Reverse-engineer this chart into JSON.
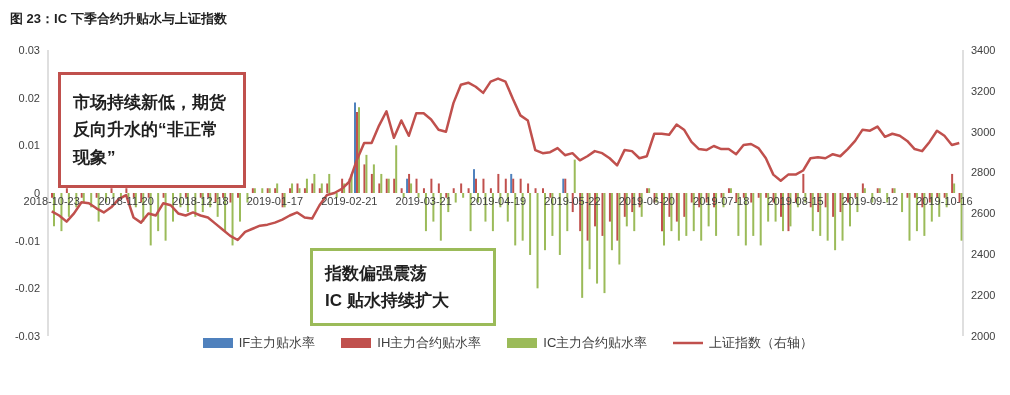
{
  "chart_data": {
    "type": "bar",
    "title": "图 23：IC 下季合约升贴水与上证指数",
    "categories": [
      "2018-10-23",
      null,
      null,
      null,
      null,
      null,
      null,
      null,
      null,
      null,
      "2018-11-20",
      null,
      null,
      null,
      null,
      null,
      null,
      null,
      null,
      null,
      "2018-12-18",
      null,
      null,
      null,
      null,
      null,
      null,
      null,
      null,
      null,
      "2019-01-17",
      null,
      null,
      null,
      null,
      null,
      null,
      null,
      null,
      null,
      "2019-02-21",
      null,
      null,
      null,
      null,
      null,
      null,
      null,
      null,
      null,
      "2019-03-21",
      null,
      null,
      null,
      null,
      null,
      null,
      null,
      null,
      null,
      "2019-04-19",
      null,
      null,
      null,
      null,
      null,
      null,
      null,
      null,
      null,
      "2019-05-22",
      null,
      null,
      null,
      null,
      null,
      null,
      null,
      null,
      null,
      "2019-06-20",
      null,
      null,
      null,
      null,
      null,
      null,
      null,
      null,
      null,
      "2019-07-18",
      null,
      null,
      null,
      null,
      null,
      null,
      null,
      null,
      null,
      "2019-08-15",
      null,
      null,
      null,
      null,
      null,
      null,
      null,
      null,
      null,
      "2019-09-12",
      null,
      null,
      null,
      null,
      null,
      null,
      null,
      null,
      null,
      "2019-10-16",
      null,
      null
    ],
    "series": [
      {
        "name": "IF主力贴水率",
        "color": "#4f81bd",
        "values": [
          null,
          null,
          null,
          null,
          null,
          null,
          null,
          null,
          null,
          null,
          null,
          null,
          null,
          null,
          null,
          null,
          null,
          null,
          null,
          null,
          null,
          null,
          null,
          null,
          null,
          null,
          null,
          null,
          null,
          null,
          null,
          null,
          null,
          null,
          null,
          null,
          null,
          null,
          null,
          null,
          null,
          0.019,
          null,
          null,
          null,
          null,
          null,
          null,
          0.003,
          null,
          null,
          null,
          null,
          null,
          null,
          null,
          null,
          0.005,
          null,
          null,
          null,
          null,
          0.004,
          null,
          null,
          null,
          null,
          null,
          null,
          0.003,
          null,
          null,
          null,
          null,
          null,
          null,
          null,
          null,
          null,
          null,
          null,
          null,
          null,
          null,
          null,
          null,
          null,
          null,
          null,
          null,
          null,
          null,
          null,
          null,
          null,
          null,
          null,
          null,
          null,
          null,
          null,
          null,
          null,
          null,
          null,
          null,
          null,
          null,
          null,
          null,
          null,
          null,
          null,
          null,
          null,
          null,
          null,
          null,
          null,
          null,
          null,
          null,
          null
        ]
      },
      {
        "name": "IH主力合约贴水率",
        "color": "#c0504d",
        "values": [
          -0.001,
          0,
          0.001,
          0,
          -0.001,
          0,
          -0.001,
          0,
          0.001,
          0,
          0.001,
          -0.001,
          -0.002,
          -0.001,
          0,
          -0.001,
          0,
          0,
          -0.001,
          0,
          -0.001,
          -0.001,
          -0.002,
          -0.001,
          -0.002,
          -0.001,
          0,
          0.001,
          0,
          0.001,
          0.001,
          -0.003,
          0.001,
          0.002,
          0.001,
          0.002,
          0.001,
          0.002,
          0,
          0.003,
          0.003,
          0.017,
          0.006,
          0.004,
          0.002,
          0.003,
          0.003,
          0.001,
          0.004,
          0.003,
          0.001,
          0.003,
          0.002,
          -0.001,
          0.001,
          0.002,
          0.001,
          0.003,
          0.003,
          0.001,
          0.004,
          0.003,
          0.003,
          0.003,
          0.002,
          0.001,
          0.001,
          -0.001,
          0,
          0.003,
          -0.004,
          -0.008,
          -0.01,
          -0.007,
          -0.009,
          -0.006,
          -0.01,
          -0.005,
          -0.004,
          -0.003,
          0.001,
          -0.002,
          -0.008,
          -0.005,
          -0.006,
          -0.005,
          -0.002,
          -0.003,
          -0.002,
          -0.003,
          -0.001,
          0.001,
          -0.002,
          -0.001,
          -0.002,
          -0.001,
          -0.001,
          -0.002,
          -0.005,
          -0.008,
          -0.002,
          0.004,
          -0.003,
          -0.004,
          -0.003,
          -0.005,
          -0.004,
          -0.002,
          -0.001,
          0.002,
          0,
          0.001,
          0,
          0.001,
          0,
          -0.001,
          -0.001,
          -0.003,
          -0.002,
          -0.001,
          -0.001,
          0.004,
          -0.002
        ]
      },
      {
        "name": "IC主力合约贴水率",
        "color": "#9bbb59",
        "values": [
          -0.007,
          -0.008,
          -0.005,
          -0.003,
          -0.002,
          -0.003,
          -0.006,
          -0.002,
          -0.001,
          -0.001,
          -0.001,
          -0.003,
          -0.006,
          -0.011,
          -0.008,
          -0.01,
          -0.006,
          -0.003,
          -0.004,
          -0.005,
          -0.004,
          -0.003,
          -0.005,
          -0.008,
          -0.011,
          -0.006,
          -0.002,
          0.001,
          0.001,
          0.001,
          0.002,
          -0.003,
          0.002,
          0.001,
          0.003,
          0.004,
          0.002,
          0.004,
          -0.001,
          0.002,
          0.004,
          0.018,
          0.008,
          0.006,
          0.004,
          0.003,
          0.01,
          -0.001,
          0.002,
          -0.001,
          -0.008,
          -0.006,
          -0.01,
          -0.004,
          -0.002,
          -0.001,
          -0.008,
          -0.002,
          -0.006,
          -0.008,
          -0.003,
          -0.006,
          -0.011,
          -0.01,
          -0.013,
          -0.02,
          -0.012,
          -0.009,
          -0.013,
          -0.008,
          0.007,
          -0.022,
          -0.016,
          -0.019,
          -0.021,
          -0.012,
          -0.015,
          -0.007,
          -0.008,
          -0.005,
          0.001,
          -0.002,
          -0.011,
          -0.008,
          -0.01,
          -0.009,
          -0.008,
          -0.01,
          -0.007,
          -0.009,
          -0.003,
          0.001,
          -0.009,
          -0.011,
          -0.009,
          -0.011,
          -0.006,
          -0.006,
          -0.008,
          -0.007,
          -0.003,
          -0.002,
          -0.008,
          -0.009,
          -0.01,
          -0.012,
          -0.01,
          -0.007,
          -0.004,
          0.001,
          -0.002,
          0.001,
          -0.002,
          0.001,
          -0.004,
          -0.01,
          -0.008,
          -0.009,
          -0.006,
          -0.005,
          -0.003,
          0.002,
          -0.01
        ]
      },
      {
        "name": "上证指数（右轴）",
        "type": "line",
        "axis": "y2",
        "color": "#c0504d",
        "values": [
          2610,
          2590,
          2560,
          2600,
          2655,
          2650,
          2625,
          2605,
          2630,
          2670,
          2690,
          2580,
          2555,
          2600,
          2590,
          2650,
          2640,
          2600,
          2590,
          2605,
          2590,
          2580,
          2550,
          2520,
          2490,
          2470,
          2510,
          2525,
          2540,
          2545,
          2555,
          2570,
          2590,
          2605,
          2580,
          2575,
          2640,
          2690,
          2700,
          2720,
          2755,
          2860,
          2945,
          2945,
          3030,
          3100,
          2970,
          3055,
          2980,
          3090,
          3090,
          3060,
          3010,
          3000,
          3140,
          3230,
          3240,
          3220,
          3190,
          3245,
          3260,
          3245,
          3160,
          3080,
          3055,
          2910,
          2895,
          2900,
          2920,
          2885,
          2895,
          2860,
          2880,
          2905,
          2895,
          2870,
          2835,
          2910,
          2905,
          2870,
          2880,
          2990,
          2990,
          2985,
          3035,
          3010,
          2950,
          2915,
          2910,
          2930,
          2915,
          2915,
          2890,
          2935,
          2940,
          2920,
          2870,
          2790,
          2760,
          2790,
          2790,
          2810,
          2870,
          2875,
          2870,
          2890,
          2880,
          2915,
          2955,
          3010,
          3005,
          3025,
          2975,
          2990,
          2980,
          2955,
          2915,
          2905,
          2950,
          3005,
          2980,
          2935,
          2945
        ]
      }
    ],
    "ylim": [
      -0.03,
      0.03
    ],
    "yticks": [
      -0.03,
      -0.02,
      -0.01,
      0,
      0.01,
      0.02,
      0.03
    ],
    "y2lim": [
      2000,
      3400
    ],
    "y2ticks": [
      2000,
      2200,
      2400,
      2600,
      2800,
      3000,
      3200,
      3400
    ],
    "legend": "bottom",
    "grid": false,
    "annotations": [
      "市场持续新低，期货反向升水的“非正常现象”",
      "指数偏强震荡\nIC 贴水持续扩大"
    ]
  }
}
